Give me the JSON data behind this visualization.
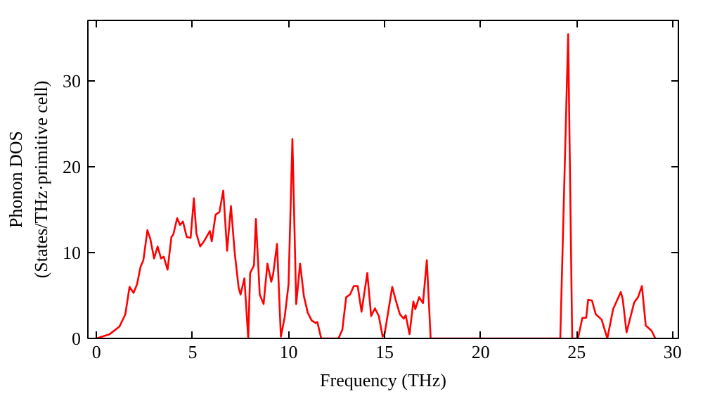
{
  "chart_data": {
    "type": "line",
    "xlabel": "Frequency (THz)",
    "ylabel": "Phonon DOS\n(States/THz·primitive cell)",
    "x": [
      0,
      0.69,
      1.2,
      1.5,
      1.72,
      1.93,
      2.11,
      2.29,
      2.44,
      2.65,
      2.8,
      3.0,
      3.18,
      3.36,
      3.5,
      3.7,
      3.9,
      4.0,
      4.2,
      4.35,
      4.5,
      4.7,
      4.9,
      5.07,
      5.2,
      5.4,
      5.6,
      5.9,
      6.0,
      6.2,
      6.4,
      6.6,
      6.8,
      7.0,
      7.2,
      7.4,
      7.5,
      7.7,
      7.9,
      8.0,
      8.2,
      8.3,
      8.5,
      8.7,
      8.9,
      9.1,
      9.2,
      9.4,
      9.6,
      9.8,
      10.0,
      10.2,
      10.4,
      10.6,
      10.8,
      11.0,
      11.2,
      11.4,
      11.5,
      11.7,
      12.6,
      12.8,
      13.0,
      13.2,
      13.4,
      13.6,
      13.8,
      14.1,
      14.3,
      14.5,
      14.7,
      14.9,
      15.0,
      15.4,
      15.6,
      15.8,
      16.0,
      16.1,
      16.3,
      16.5,
      16.6,
      16.8,
      17.0,
      17.2,
      17.4,
      24.15,
      24.56,
      24.77,
      25.07,
      25.3,
      25.5,
      25.6,
      25.8,
      26.0,
      26.3,
      26.6,
      26.9,
      27.3,
      27.4,
      27.6,
      28.0,
      28.2,
      28.4,
      28.6,
      28.9,
      29.1
    ],
    "series": [
      {
        "color": "#ff0000",
        "values": [
          0,
          0.5,
          1.4,
          2.8,
          6.0,
          5.3,
          6.3,
          8.3,
          9.1,
          12.6,
          11.6,
          9.3,
          10.7,
          9.3,
          9.5,
          8.0,
          11.8,
          12.1,
          14.0,
          13.2,
          13.6,
          11.8,
          11.7,
          16.3,
          12.2,
          10.7,
          11.3,
          12.5,
          11.3,
          14.4,
          14.7,
          17.2,
          10.2,
          15.4,
          9.9,
          5.9,
          5.1,
          7.0,
          0,
          7.6,
          8.5,
          13.9,
          5.1,
          4.0,
          8.7,
          6.6,
          7.5,
          11.0,
          0.2,
          2.5,
          6.3,
          23.2,
          4.0,
          8.7,
          4.9,
          3.0,
          2.1,
          1.8,
          1.9,
          0,
          0,
          1.0,
          4.8,
          5.1,
          6.1,
          6.1,
          3.1,
          7.6,
          2.6,
          3.5,
          2.6,
          0.2,
          0.5,
          6.0,
          4.3,
          2.8,
          2.3,
          2.7,
          0.5,
          4.3,
          3.4,
          4.8,
          4.1,
          9.1,
          0,
          0,
          35.4,
          0,
          0,
          2.4,
          2.4,
          4.5,
          4.4,
          2.8,
          2.2,
          0,
          3.4,
          5.4,
          4.6,
          0.7,
          4.2,
          4.8,
          6.1,
          1.5,
          0.9,
          0
        ]
      }
    ],
    "xlim": [
      -0.45,
      30.3
    ],
    "ylim": [
      0,
      37
    ],
    "xticks": [
      0,
      5,
      10,
      15,
      20,
      25,
      30
    ],
    "yticks": [
      0,
      10,
      20,
      30
    ],
    "grid": false
  }
}
